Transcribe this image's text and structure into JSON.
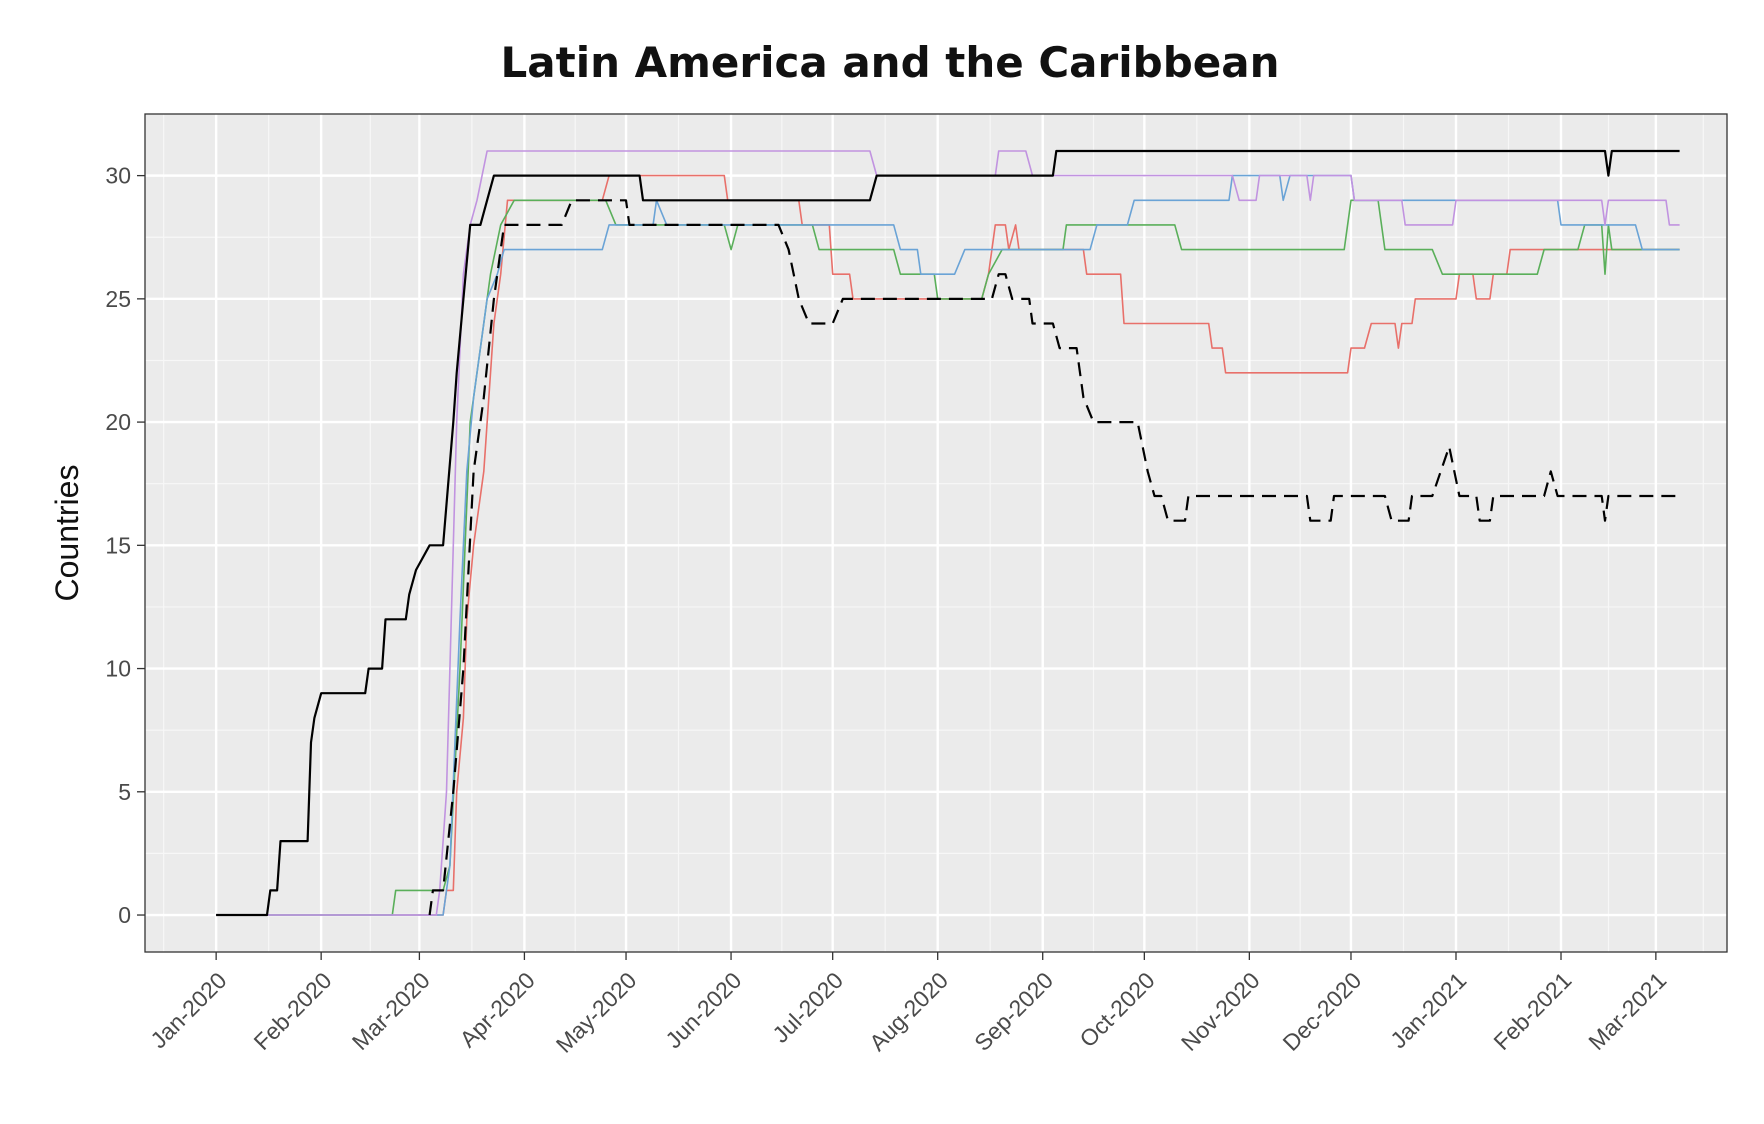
{
  "chart_data": {
    "type": "line",
    "title": "Latin America and the Caribbean",
    "xlabel": "",
    "ylabel": "Countries",
    "x_ticks": [
      "Jan-2020",
      "Feb-2020",
      "Mar-2020",
      "Apr-2020",
      "May-2020",
      "Jun-2020",
      "Jul-2020",
      "Aug-2020",
      "Sep-2020",
      "Oct-2020",
      "Nov-2020",
      "Dec-2020",
      "Jan-2021",
      "Feb-2021",
      "Mar-2021"
    ],
    "ylim": [
      -1.5,
      32.5
    ],
    "yticks": [
      0,
      5,
      10,
      15,
      20,
      25,
      30
    ],
    "xlim": [
      "2019-12-11",
      "2021-03-22"
    ],
    "grid": true,
    "legend": "none",
    "series": [
      {
        "color": "#000000",
        "style": "solid",
        "width": 2.2,
        "points": [
          [
            "2020-01-01",
            0
          ],
          [
            "2020-01-16",
            0
          ],
          [
            "2020-01-17",
            1
          ],
          [
            "2020-01-19",
            1
          ],
          [
            "2020-01-20",
            3
          ],
          [
            "2020-01-28",
            3
          ],
          [
            "2020-01-29",
            7
          ],
          [
            "2020-01-30",
            8
          ],
          [
            "2020-02-01",
            9
          ],
          [
            "2020-02-14",
            9
          ],
          [
            "2020-02-15",
            10
          ],
          [
            "2020-02-19",
            10
          ],
          [
            "2020-02-20",
            12
          ],
          [
            "2020-02-26",
            12
          ],
          [
            "2020-02-27",
            13
          ],
          [
            "2020-02-29",
            14
          ],
          [
            "2020-03-04",
            15
          ],
          [
            "2020-03-08",
            15
          ],
          [
            "2020-03-11",
            20
          ],
          [
            "2020-03-12",
            22
          ],
          [
            "2020-03-14",
            25
          ],
          [
            "2020-03-16",
            28
          ],
          [
            "2020-03-19",
            28
          ],
          [
            "2020-03-21",
            29
          ],
          [
            "2020-03-23",
            30
          ],
          [
            "2020-05-05",
            30
          ],
          [
            "2020-05-06",
            29
          ],
          [
            "2020-07-12",
            29
          ],
          [
            "2020-07-14",
            30
          ],
          [
            "2020-09-04",
            30
          ],
          [
            "2020-09-05",
            31
          ],
          [
            "2021-02-14",
            31
          ],
          [
            "2021-02-15",
            30
          ],
          [
            "2021-02-16",
            31
          ],
          [
            "2021-03-08",
            31
          ]
        ]
      },
      {
        "color": "#000000",
        "style": "dashed",
        "width": 2.2,
        "points": [
          [
            "2020-03-04",
            0
          ],
          [
            "2020-03-05",
            1
          ],
          [
            "2020-03-08",
            1
          ],
          [
            "2020-03-11",
            5
          ],
          [
            "2020-03-14",
            10
          ],
          [
            "2020-03-17",
            18
          ],
          [
            "2020-03-20",
            21
          ],
          [
            "2020-03-23",
            25
          ],
          [
            "2020-03-26",
            28
          ],
          [
            "2020-04-12",
            28
          ],
          [
            "2020-04-15",
            29
          ],
          [
            "2020-05-01",
            29
          ],
          [
            "2020-05-02",
            28
          ],
          [
            "2020-06-15",
            28
          ],
          [
            "2020-06-18",
            27
          ],
          [
            "2020-06-21",
            25
          ],
          [
            "2020-06-24",
            24
          ],
          [
            "2020-07-01",
            24
          ],
          [
            "2020-07-04",
            25
          ],
          [
            "2020-08-17",
            25
          ],
          [
            "2020-08-19",
            26
          ],
          [
            "2020-08-21",
            26
          ],
          [
            "2020-08-23",
            25
          ],
          [
            "2020-08-28",
            25
          ],
          [
            "2020-08-29",
            24
          ],
          [
            "2020-09-04",
            24
          ],
          [
            "2020-09-06",
            23
          ],
          [
            "2020-09-11",
            23
          ],
          [
            "2020-09-13",
            21
          ],
          [
            "2020-09-16",
            20
          ],
          [
            "2020-09-29",
            20
          ],
          [
            "2020-10-02",
            18
          ],
          [
            "2020-10-04",
            17
          ],
          [
            "2020-10-06",
            17
          ],
          [
            "2020-10-08",
            16
          ],
          [
            "2020-10-13",
            16
          ],
          [
            "2020-10-14",
            17
          ],
          [
            "2020-11-18",
            17
          ],
          [
            "2020-11-19",
            16
          ],
          [
            "2020-11-25",
            16
          ],
          [
            "2020-11-26",
            17
          ],
          [
            "2020-12-11",
            17
          ],
          [
            "2020-12-13",
            16
          ],
          [
            "2020-12-18",
            16
          ],
          [
            "2020-12-19",
            17
          ],
          [
            "2020-12-25",
            17
          ],
          [
            "2020-12-30",
            19
          ],
          [
            "2021-01-02",
            17
          ],
          [
            "2021-01-07",
            17
          ],
          [
            "2021-01-08",
            16
          ],
          [
            "2021-01-11",
            16
          ],
          [
            "2021-01-12",
            17
          ],
          [
            "2021-01-27",
            17
          ],
          [
            "2021-01-29",
            18
          ],
          [
            "2021-01-31",
            17
          ],
          [
            "2021-02-13",
            17
          ],
          [
            "2021-02-14",
            16
          ],
          [
            "2021-02-15",
            17
          ],
          [
            "2021-03-08",
            17
          ]
        ]
      },
      {
        "color": "#e8706a",
        "style": "solid",
        "width": 1.6,
        "points": [
          [
            "2020-01-01",
            0
          ],
          [
            "2020-03-08",
            0
          ],
          [
            "2020-03-09",
            1
          ],
          [
            "2020-03-11",
            1
          ],
          [
            "2020-03-12",
            5
          ],
          [
            "2020-03-14",
            8
          ],
          [
            "2020-03-15",
            12
          ],
          [
            "2020-03-17",
            15
          ],
          [
            "2020-03-20",
            18
          ],
          [
            "2020-03-23",
            24
          ],
          [
            "2020-03-25",
            26
          ],
          [
            "2020-03-27",
            29
          ],
          [
            "2020-04-24",
            29
          ],
          [
            "2020-04-26",
            30
          ],
          [
            "2020-05-30",
            30
          ],
          [
            "2020-05-31",
            29
          ],
          [
            "2020-06-21",
            29
          ],
          [
            "2020-06-22",
            28
          ],
          [
            "2020-06-30",
            28
          ],
          [
            "2020-07-01",
            26
          ],
          [
            "2020-07-06",
            26
          ],
          [
            "2020-07-07",
            25
          ],
          [
            "2020-08-14",
            25
          ],
          [
            "2020-08-16",
            26
          ],
          [
            "2020-08-18",
            28
          ],
          [
            "2020-08-21",
            28
          ],
          [
            "2020-08-22",
            27
          ],
          [
            "2020-08-24",
            28
          ],
          [
            "2020-08-25",
            27
          ],
          [
            "2020-09-13",
            27
          ],
          [
            "2020-09-14",
            26
          ],
          [
            "2020-09-24",
            26
          ],
          [
            "2020-09-25",
            24
          ],
          [
            "2020-10-20",
            24
          ],
          [
            "2020-10-21",
            23
          ],
          [
            "2020-10-24",
            23
          ],
          [
            "2020-10-25",
            22
          ],
          [
            "2020-11-30",
            22
          ],
          [
            "2020-12-01",
            23
          ],
          [
            "2020-12-05",
            23
          ],
          [
            "2020-12-07",
            24
          ],
          [
            "2020-12-14",
            24
          ],
          [
            "2020-12-15",
            23
          ],
          [
            "2020-12-16",
            24
          ],
          [
            "2020-12-19",
            24
          ],
          [
            "2020-12-20",
            25
          ],
          [
            "2021-01-01",
            25
          ],
          [
            "2021-01-02",
            26
          ],
          [
            "2021-01-06",
            26
          ],
          [
            "2021-01-07",
            25
          ],
          [
            "2021-01-11",
            25
          ],
          [
            "2021-01-12",
            26
          ],
          [
            "2021-01-16",
            26
          ],
          [
            "2021-01-17",
            27
          ],
          [
            "2021-03-08",
            27
          ]
        ]
      },
      {
        "color": "#5aaf5a",
        "style": "solid",
        "width": 1.6,
        "points": [
          [
            "2020-01-01",
            0
          ],
          [
            "2020-02-22",
            0
          ],
          [
            "2020-02-23",
            1
          ],
          [
            "2020-03-08",
            1
          ],
          [
            "2020-03-10",
            2
          ],
          [
            "2020-03-13",
            10
          ],
          [
            "2020-03-16",
            20
          ],
          [
            "2020-03-19",
            23
          ],
          [
            "2020-03-22",
            26
          ],
          [
            "2020-03-25",
            28
          ],
          [
            "2020-03-29",
            29
          ],
          [
            "2020-04-25",
            29
          ],
          [
            "2020-04-28",
            28
          ],
          [
            "2020-05-30",
            28
          ],
          [
            "2020-06-01",
            27
          ],
          [
            "2020-06-03",
            28
          ],
          [
            "2020-06-25",
            28
          ],
          [
            "2020-06-27",
            27
          ],
          [
            "2020-07-19",
            27
          ],
          [
            "2020-07-21",
            26
          ],
          [
            "2020-07-31",
            26
          ],
          [
            "2020-08-01",
            25
          ],
          [
            "2020-08-14",
            25
          ],
          [
            "2020-08-16",
            26
          ],
          [
            "2020-08-20",
            27
          ],
          [
            "2020-09-07",
            27
          ],
          [
            "2020-09-08",
            28
          ],
          [
            "2020-10-10",
            28
          ],
          [
            "2020-10-12",
            27
          ],
          [
            "2020-11-29",
            27
          ],
          [
            "2020-12-01",
            29
          ],
          [
            "2020-12-09",
            29
          ],
          [
            "2020-12-11",
            27
          ],
          [
            "2020-12-25",
            27
          ],
          [
            "2020-12-28",
            26
          ],
          [
            "2021-01-25",
            26
          ],
          [
            "2021-01-27",
            27
          ],
          [
            "2021-02-06",
            27
          ],
          [
            "2021-02-08",
            28
          ],
          [
            "2021-02-13",
            28
          ],
          [
            "2021-02-14",
            26
          ],
          [
            "2021-02-15",
            28
          ],
          [
            "2021-02-16",
            27
          ],
          [
            "2021-03-08",
            27
          ]
        ]
      },
      {
        "color": "#6aa3d6",
        "style": "solid",
        "width": 1.6,
        "points": [
          [
            "2020-01-01",
            0
          ],
          [
            "2020-03-08",
            0
          ],
          [
            "2020-03-10",
            2
          ],
          [
            "2020-03-13",
            12
          ],
          [
            "2020-03-15",
            18
          ],
          [
            "2020-03-17",
            21
          ],
          [
            "2020-03-19",
            23
          ],
          [
            "2020-03-21",
            25
          ],
          [
            "2020-03-24",
            26
          ],
          [
            "2020-03-26",
            27
          ],
          [
            "2020-04-24",
            27
          ],
          [
            "2020-04-26",
            28
          ],
          [
            "2020-05-09",
            28
          ],
          [
            "2020-05-10",
            29
          ],
          [
            "2020-05-13",
            28
          ],
          [
            "2020-06-20",
            28
          ],
          [
            "2020-06-22",
            28
          ],
          [
            "2020-07-19",
            28
          ],
          [
            "2020-07-21",
            27
          ],
          [
            "2020-07-26",
            27
          ],
          [
            "2020-07-27",
            26
          ],
          [
            "2020-08-06",
            26
          ],
          [
            "2020-08-09",
            27
          ],
          [
            "2020-09-15",
            27
          ],
          [
            "2020-09-17",
            28
          ],
          [
            "2020-09-26",
            28
          ],
          [
            "2020-09-28",
            29
          ],
          [
            "2020-10-26",
            29
          ],
          [
            "2020-10-27",
            30
          ],
          [
            "2020-11-10",
            30
          ],
          [
            "2020-11-11",
            29
          ],
          [
            "2020-11-13",
            30
          ],
          [
            "2020-12-01",
            30
          ],
          [
            "2020-12-02",
            29
          ],
          [
            "2021-01-31",
            29
          ],
          [
            "2021-02-01",
            28
          ],
          [
            "2021-02-23",
            28
          ],
          [
            "2021-02-25",
            27
          ],
          [
            "2021-03-08",
            27
          ]
        ]
      },
      {
        "color": "#c193e0",
        "style": "solid",
        "width": 1.6,
        "points": [
          [
            "2020-01-01",
            0
          ],
          [
            "2020-03-06",
            0
          ],
          [
            "2020-03-07",
            1
          ],
          [
            "2020-03-09",
            5
          ],
          [
            "2020-03-12",
            20
          ],
          [
            "2020-03-14",
            26
          ],
          [
            "2020-03-16",
            28
          ],
          [
            "2020-03-18",
            29
          ],
          [
            "2020-03-21",
            31
          ],
          [
            "2020-07-12",
            31
          ],
          [
            "2020-07-14",
            30
          ],
          [
            "2020-08-18",
            30
          ],
          [
            "2020-08-19",
            31
          ],
          [
            "2020-08-27",
            31
          ],
          [
            "2020-08-29",
            30
          ],
          [
            "2020-10-27",
            30
          ],
          [
            "2020-10-29",
            29
          ],
          [
            "2020-11-03",
            29
          ],
          [
            "2020-11-04",
            30
          ],
          [
            "2020-11-18",
            30
          ],
          [
            "2020-11-19",
            29
          ],
          [
            "2020-11-20",
            30
          ],
          [
            "2020-12-01",
            30
          ],
          [
            "2020-12-02",
            29
          ],
          [
            "2020-12-16",
            29
          ],
          [
            "2020-12-17",
            28
          ],
          [
            "2020-12-31",
            28
          ],
          [
            "2021-01-01",
            29
          ],
          [
            "2021-02-13",
            29
          ],
          [
            "2021-02-14",
            28
          ],
          [
            "2021-02-15",
            29
          ],
          [
            "2021-03-04",
            29
          ],
          [
            "2021-03-05",
            28
          ],
          [
            "2021-03-08",
            28
          ]
        ]
      }
    ]
  }
}
